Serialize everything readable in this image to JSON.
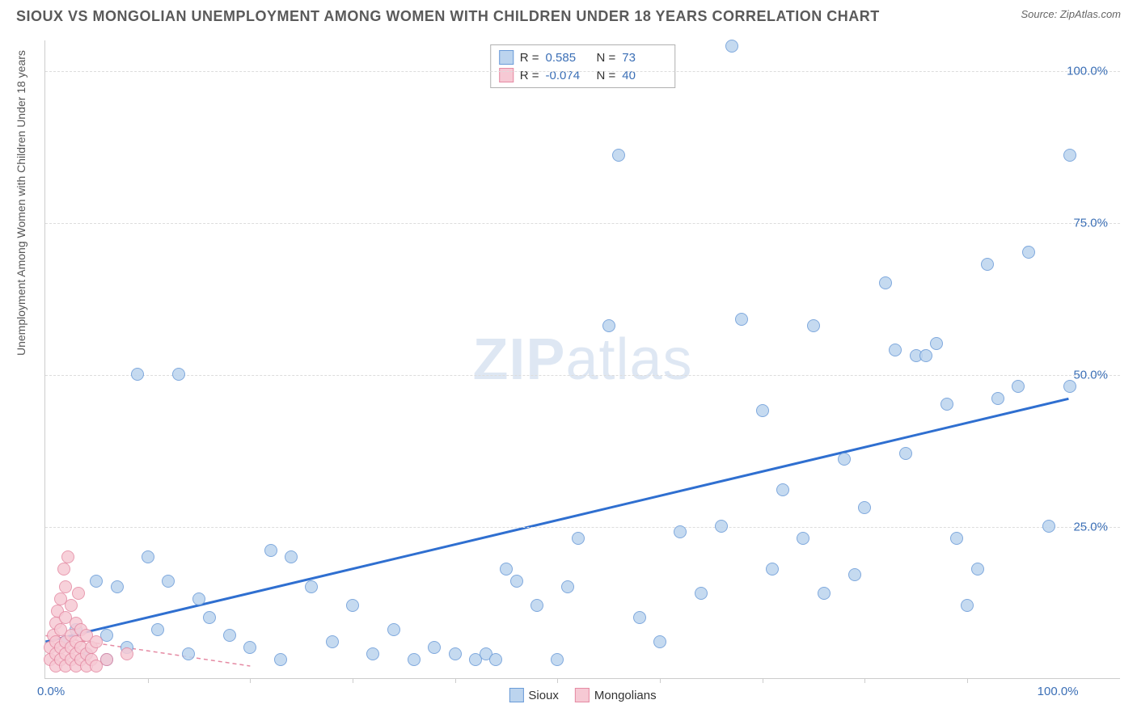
{
  "title": "SIOUX VS MONGOLIAN UNEMPLOYMENT AMONG WOMEN WITH CHILDREN UNDER 18 YEARS CORRELATION CHART",
  "source": "Source: ZipAtlas.com",
  "y_axis_label": "Unemployment Among Women with Children Under 18 years",
  "watermark_a": "ZIP",
  "watermark_b": "atlas",
  "chart": {
    "type": "scatter",
    "xlim": [
      0,
      105
    ],
    "ylim": [
      0,
      105
    ],
    "x_ticks": [
      0,
      100
    ],
    "x_tick_labels": [
      "0.0%",
      "100.0%"
    ],
    "x_minor_ticks": [
      10,
      20,
      30,
      40,
      50,
      60,
      70,
      80,
      90
    ],
    "y_ticks": [
      25,
      50,
      75,
      100
    ],
    "y_tick_labels": [
      "25.0%",
      "50.0%",
      "75.0%",
      "100.0%"
    ],
    "grid_color": "#dddddd",
    "background_color": "#ffffff",
    "point_radius": 8,
    "series": [
      {
        "name": "Sioux",
        "fill_color": "#bcd4ee",
        "stroke_color": "#6a9bd8",
        "r_value": "0.585",
        "n_value": "73",
        "trend": {
          "x1": 0,
          "y1": 6,
          "x2": 100,
          "y2": 46,
          "color": "#2f6fd0",
          "width": 3,
          "dash": "none"
        },
        "points": [
          [
            2,
            6
          ],
          [
            3,
            8
          ],
          [
            4,
            4
          ],
          [
            5,
            16
          ],
          [
            6,
            7
          ],
          [
            6,
            3
          ],
          [
            7,
            15
          ],
          [
            8,
            5
          ],
          [
            9,
            50
          ],
          [
            10,
            20
          ],
          [
            11,
            8
          ],
          [
            12,
            16
          ],
          [
            13,
            50
          ],
          [
            14,
            4
          ],
          [
            15,
            13
          ],
          [
            16,
            10
          ],
          [
            18,
            7
          ],
          [
            20,
            5
          ],
          [
            22,
            21
          ],
          [
            23,
            3
          ],
          [
            24,
            20
          ],
          [
            26,
            15
          ],
          [
            28,
            6
          ],
          [
            30,
            12
          ],
          [
            32,
            4
          ],
          [
            34,
            8
          ],
          [
            36,
            3
          ],
          [
            38,
            5
          ],
          [
            40,
            4
          ],
          [
            42,
            3
          ],
          [
            43,
            4
          ],
          [
            44,
            3
          ],
          [
            45,
            18
          ],
          [
            46,
            16
          ],
          [
            48,
            12
          ],
          [
            50,
            3
          ],
          [
            51,
            15
          ],
          [
            52,
            23
          ],
          [
            55,
            58
          ],
          [
            56,
            86
          ],
          [
            58,
            10
          ],
          [
            60,
            6
          ],
          [
            62,
            24
          ],
          [
            64,
            14
          ],
          [
            66,
            25
          ],
          [
            67,
            104
          ],
          [
            68,
            59
          ],
          [
            70,
            44
          ],
          [
            71,
            18
          ],
          [
            72,
            31
          ],
          [
            74,
            23
          ],
          [
            75,
            58
          ],
          [
            76,
            14
          ],
          [
            78,
            36
          ],
          [
            79,
            17
          ],
          [
            80,
            28
          ],
          [
            82,
            65
          ],
          [
            83,
            54
          ],
          [
            84,
            37
          ],
          [
            85,
            53
          ],
          [
            86,
            53
          ],
          [
            87,
            55
          ],
          [
            88,
            45
          ],
          [
            89,
            23
          ],
          [
            90,
            12
          ],
          [
            91,
            18
          ],
          [
            92,
            68
          ],
          [
            93,
            46
          ],
          [
            95,
            48
          ],
          [
            96,
            70
          ],
          [
            98,
            25
          ],
          [
            100,
            86
          ],
          [
            100,
            48
          ]
        ]
      },
      {
        "name": "Mongolians",
        "fill_color": "#f6c9d4",
        "stroke_color": "#e58aa3",
        "r_value": "-0.074",
        "n_value": "40",
        "trend": {
          "x1": 0,
          "y1": 7,
          "x2": 20,
          "y2": 2,
          "color": "#e58aa3",
          "width": 1.5,
          "dash": "5,4"
        },
        "points": [
          [
            0.5,
            3
          ],
          [
            0.5,
            5
          ],
          [
            0.8,
            7
          ],
          [
            1,
            2
          ],
          [
            1,
            4
          ],
          [
            1,
            6
          ],
          [
            1,
            9
          ],
          [
            1.2,
            11
          ],
          [
            1.5,
            3
          ],
          [
            1.5,
            5
          ],
          [
            1.5,
            8
          ],
          [
            1.5,
            13
          ],
          [
            1.8,
            18
          ],
          [
            2,
            2
          ],
          [
            2,
            4
          ],
          [
            2,
            6
          ],
          [
            2,
            10
          ],
          [
            2,
            15
          ],
          [
            2.2,
            20
          ],
          [
            2.5,
            3
          ],
          [
            2.5,
            5
          ],
          [
            2.5,
            7
          ],
          [
            2.5,
            12
          ],
          [
            3,
            2
          ],
          [
            3,
            4
          ],
          [
            3,
            6
          ],
          [
            3,
            9
          ],
          [
            3.2,
            14
          ],
          [
            3.5,
            3
          ],
          [
            3.5,
            5
          ],
          [
            3.5,
            8
          ],
          [
            4,
            2
          ],
          [
            4,
            4
          ],
          [
            4,
            7
          ],
          [
            4.5,
            3
          ],
          [
            4.5,
            5
          ],
          [
            5,
            2
          ],
          [
            5,
            6
          ],
          [
            6,
            3
          ],
          [
            8,
            4
          ]
        ]
      }
    ],
    "stats_labels": {
      "r": "R =",
      "n": "N ="
    },
    "legend_labels": [
      "Sioux",
      "Mongolians"
    ]
  }
}
